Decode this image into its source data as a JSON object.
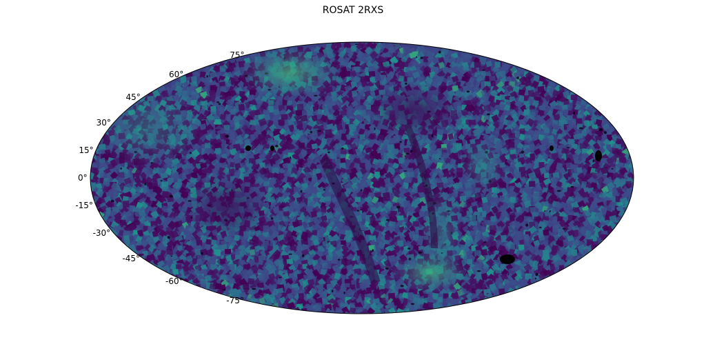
{
  "title": "ROSAT 2RXS",
  "projection": "Mollweide",
  "colormap": "viridis",
  "background_color": "#ffffff",
  "outline_color": "#000000",
  "latitude_ticks": [
    {
      "value": 75,
      "label": "75°"
    },
    {
      "value": 60,
      "label": "60°"
    },
    {
      "value": 45,
      "label": "45°"
    },
    {
      "value": 30,
      "label": "30°"
    },
    {
      "value": 15,
      "label": "15°"
    },
    {
      "value": 0,
      "label": "0°"
    },
    {
      "value": -15,
      "label": "-15°"
    },
    {
      "value": -30,
      "label": "-30°"
    },
    {
      "value": -45,
      "label": "-45°"
    },
    {
      "value": -60,
      "label": "-60°"
    },
    {
      "value": -75,
      "label": "-75°"
    }
  ]
}
